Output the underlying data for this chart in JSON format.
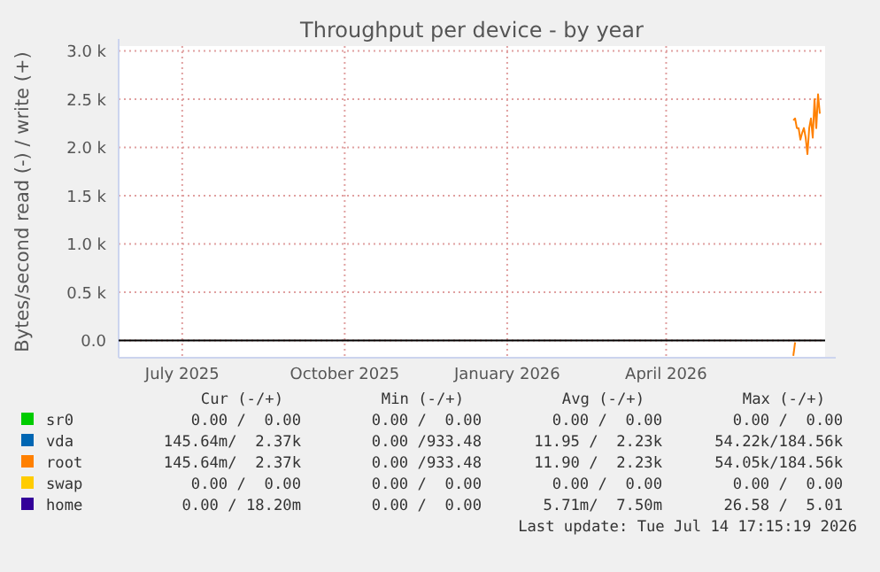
{
  "chart_data": {
    "type": "line",
    "title": "Throughput per device - by year",
    "ylabel": "Bytes/second read (-) / write (+)",
    "xlim": [
      "2025-05-26",
      "2026-06-30"
    ],
    "ylim": [
      -180,
      3050
    ],
    "xticks": [
      {
        "value": "2025-07-01",
        "label": "July 2025"
      },
      {
        "value": "2025-10-01",
        "label": "October 2025"
      },
      {
        "value": "2026-01-01",
        "label": "January 2026"
      },
      {
        "value": "2026-04-01",
        "label": "April 2026"
      }
    ],
    "yticks": [
      {
        "value": 0,
        "label": "0.0"
      },
      {
        "value": 500,
        "label": "0.5 k"
      },
      {
        "value": 1000,
        "label": "1.0 k"
      },
      {
        "value": 1500,
        "label": "1.5 k"
      },
      {
        "value": 2000,
        "label": "2.0 k"
      },
      {
        "value": 2500,
        "label": "2.5 k"
      },
      {
        "value": 3000,
        "label": "3.0 k"
      }
    ],
    "grid": true,
    "legend": "bottom",
    "ref_lines": [
      {
        "axis": "y",
        "value": 0,
        "color": "#000000"
      }
    ],
    "series": [
      {
        "name": "sr0",
        "color": "#00cc00"
      },
      {
        "name": "vda",
        "color": "#0066b3"
      },
      {
        "name": "root",
        "color": "#ff8000",
        "x": [
          "2026-06-12",
          "2026-06-13",
          "2026-06-14",
          "2026-06-15",
          "2026-06-16",
          "2026-06-17",
          "2026-06-18",
          "2026-06-19",
          "2026-06-20",
          "2026-06-21",
          "2026-06-22",
          "2026-06-23",
          "2026-06-24",
          "2026-06-25",
          "2026-06-26",
          "2026-06-27"
        ],
        "values": [
          2280,
          2300,
          2200,
          2200,
          2080,
          2150,
          2200,
          2100,
          1930,
          2200,
          2300,
          2100,
          2500,
          2200,
          2550,
          2350
        ]
      },
      {
        "name": "swap",
        "color": "#ffcc00"
      },
      {
        "name": "home",
        "color": "#330099"
      },
      {
        "color": "#ff8000",
        "x": [
          "2026-06-12",
          "2026-06-13"
        ],
        "values": [
          -160,
          -20
        ]
      }
    ],
    "annotations": [
      "Cur (-/+)",
      "Min (-/+)",
      "Avg (-/+)",
      "Max (-/+)",
      "0.00 /  0.00",
      "0.00 /  0.00",
      "0.00 /  0.00",
      "0.00 /  0.00",
      "145.64m/  2.37k",
      "0.00 /933.48",
      "11.95 /  2.23k",
      "54.22k/184.56k",
      "145.64m/  2.37k",
      "0.00 /933.48",
      "11.90 /  2.23k",
      "54.05k/184.56k",
      "0.00 /  0.00",
      "0.00 /  0.00",
      "0.00 /  0.00",
      "0.00 /  0.00",
      "0.00 / 18.20m",
      "0.00 /  0.00",
      "5.71m/  7.50m",
      "26.58 /  5.01",
      "Last update: Tue Jul 14 17:15:19 2026"
    ]
  }
}
